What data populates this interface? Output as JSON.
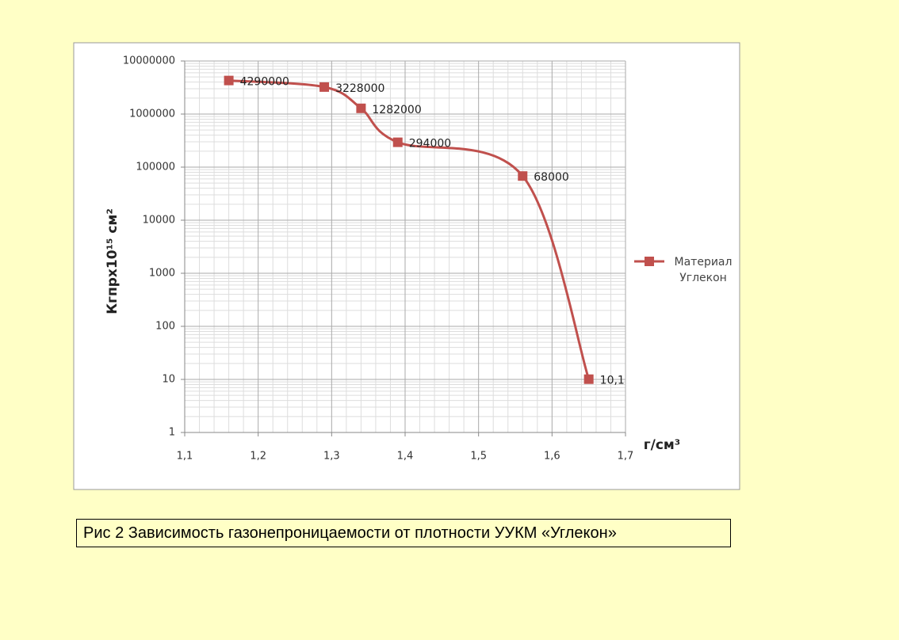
{
  "chart_data": {
    "type": "line",
    "log_scale": "y",
    "x_label": "г/см³",
    "y_label": "Кгпрх10¹⁵ см²",
    "x": [
      1.16,
      1.29,
      1.34,
      1.39,
      1.56,
      1.65
    ],
    "series": [
      {
        "name": "Материал Углекон",
        "color": "#c0504d",
        "values": [
          4290000,
          3228000,
          1282000,
          294000,
          68000,
          10.1
        ],
        "value_labels": [
          "4290000",
          "3228000",
          "1282000",
          "294000",
          "68000",
          "10,1"
        ]
      }
    ],
    "xlim": [
      1.1,
      1.7
    ],
    "xticks": [
      {
        "value": 1.1,
        "label": "1,1"
      },
      {
        "value": 1.2,
        "label": "1,2"
      },
      {
        "value": 1.3,
        "label": "1,3"
      },
      {
        "value": 1.4,
        "label": "1,4"
      },
      {
        "value": 1.5,
        "label": "1,5"
      },
      {
        "value": 1.6,
        "label": "1,6"
      },
      {
        "value": 1.7,
        "label": "1,7"
      }
    ],
    "ylim": [
      1,
      10000000
    ],
    "yticks": [
      1,
      10,
      100,
      1000,
      10000,
      100000,
      1000000,
      10000000
    ],
    "grid": true,
    "legend": "right"
  },
  "caption": "Рис 2 Зависимость газонепроницаемости от плотности УУКМ «Углекон»"
}
